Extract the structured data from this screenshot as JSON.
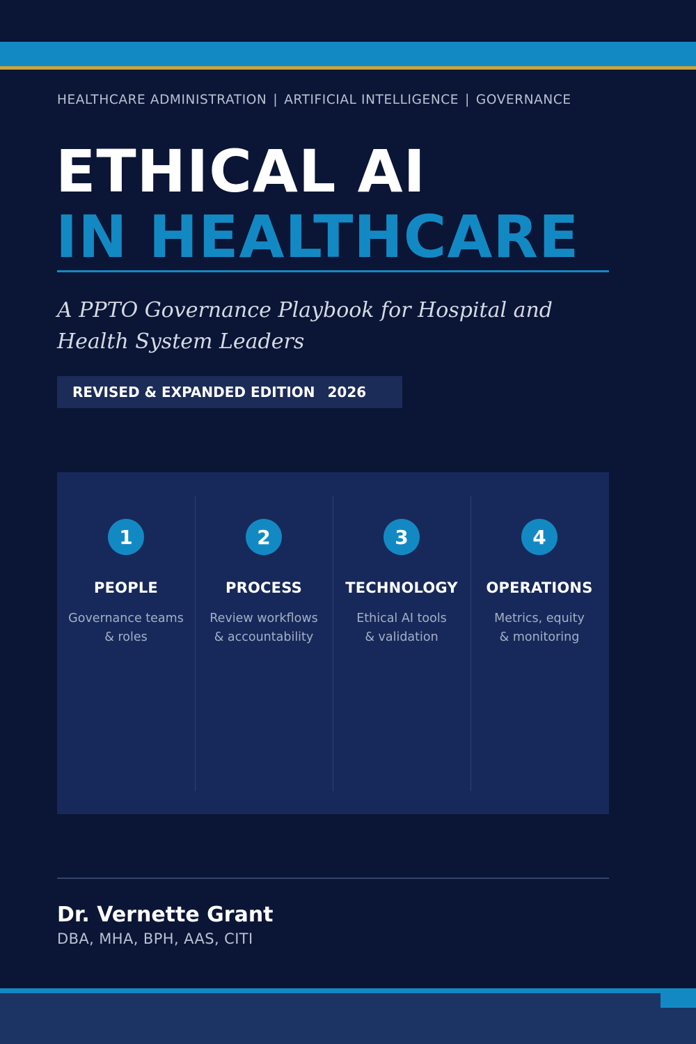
{
  "categories": [
    "HEALTHCARE ADMINISTRATION",
    "ARTIFICIAL INTELLIGENCE",
    "GOVERNANCE"
  ],
  "category_separator": "|",
  "title": {
    "line1": "ETHICAL AI",
    "line2": "IN HEALTHCARE"
  },
  "subtitle": "A PPTO Governance Playbook for Hospital and Health System Leaders",
  "edition": {
    "label": "REVISED & EXPANDED EDITION",
    "year": "2026"
  },
  "pillars": [
    {
      "number": "1",
      "title": "PEOPLE",
      "desc_line1": "Governance teams",
      "desc_line2": "& roles"
    },
    {
      "number": "2",
      "title": "PROCESS",
      "desc_line1": "Review workflows",
      "desc_line2": "& accountability"
    },
    {
      "number": "3",
      "title": "TECHNOLOGY",
      "desc_line1": "Ethical AI tools",
      "desc_line2": "& validation"
    },
    {
      "number": "4",
      "title": "OPERATIONS",
      "desc_line1": "Metrics, equity",
      "desc_line2": "& monitoring"
    }
  ],
  "author": {
    "name": "Dr. Vernette Grant",
    "credentials": "DBA, MHA, BPH, AAS, CITI"
  },
  "colors": {
    "background": "#0b1535",
    "accent_blue": "#1389c4",
    "accent_gold": "#c9a43b",
    "panel": "#17295a"
  }
}
